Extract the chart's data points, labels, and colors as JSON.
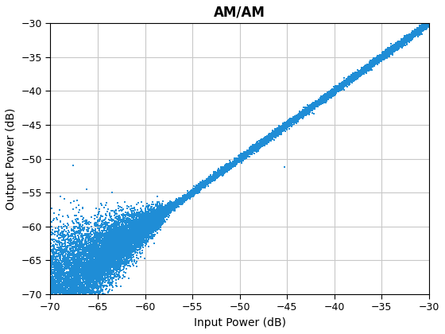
{
  "title": "AM/AM",
  "xlabel": "Input Power (dB)",
  "ylabel": "Output Power (dB)",
  "xlim": [
    -70,
    -30
  ],
  "ylim": [
    -70,
    -30
  ],
  "xticks": [
    -70,
    -65,
    -60,
    -55,
    -50,
    -45,
    -40,
    -35,
    -30
  ],
  "yticks": [
    -70,
    -65,
    -60,
    -55,
    -50,
    -45,
    -40,
    -35,
    -30
  ],
  "marker_color": "#1f8dd6",
  "marker_size": 1.8,
  "marker": "s",
  "background_color": "#ffffff",
  "grid_color": "#c8c8c8",
  "n_points": 20000,
  "seed": 42,
  "title_fontsize": 12,
  "label_fontsize": 10,
  "noise_scale_high": 0.25,
  "noise_scale_low_max": 4.5,
  "transition_point": -57.0,
  "outlier_x": -45.3,
  "outlier_y": -51.2
}
